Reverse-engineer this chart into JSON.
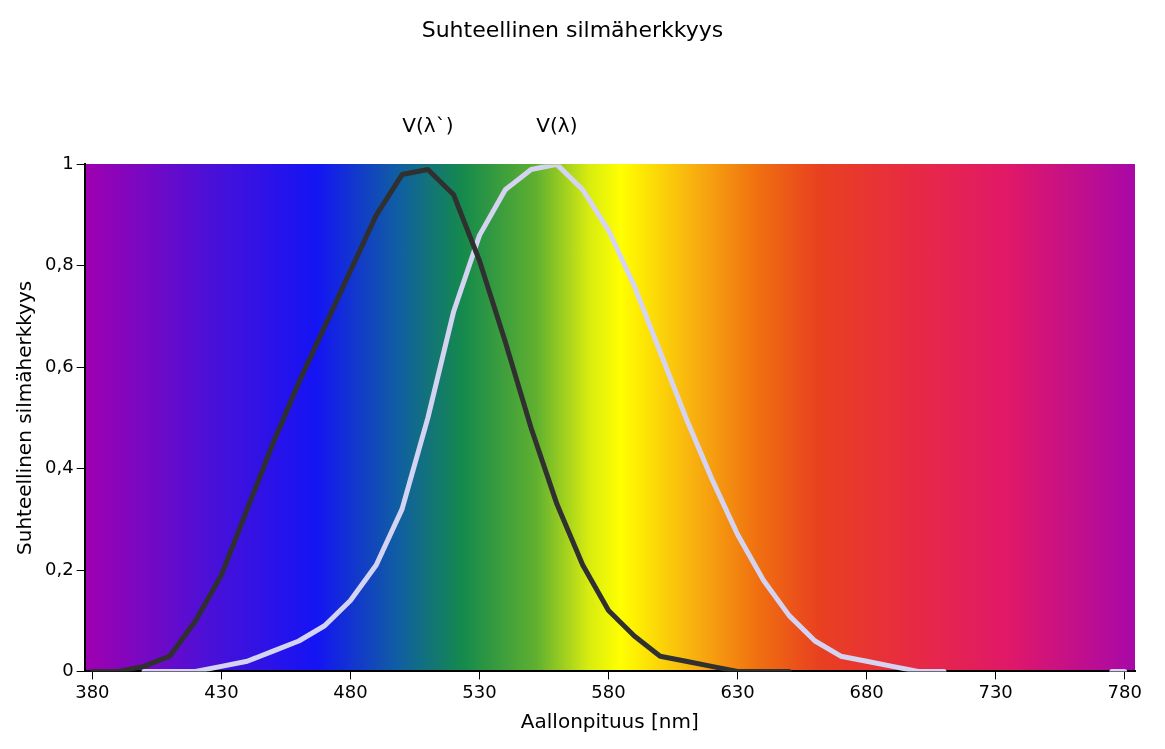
{
  "chart_data": {
    "type": "line",
    "title": "Suhteellinen silmäherkkyys",
    "xlabel": "Aallonpituus [nm]",
    "ylabel": "Suhteellinen silmäherkkyys",
    "xlim": [
      377,
      784
    ],
    "xticks": [
      380,
      430,
      480,
      530,
      580,
      630,
      680,
      730,
      780
    ],
    "ylim": [
      0,
      1
    ],
    "yticks": [
      0,
      {
        "value": 0.2,
        "label": "0,2"
      },
      {
        "value": 0.4,
        "label": "0,4"
      },
      {
        "value": 0.6,
        "label": "0,6"
      },
      {
        "value": 0.8,
        "label": "0,8"
      },
      1
    ],
    "grid": false,
    "legend": false,
    "marker": "none",
    "line_style": "solid",
    "series": [
      {
        "name": "V(λ`)",
        "color": "#303030",
        "x": [
          380,
          390,
          400,
          410,
          420,
          430,
          440,
          450,
          460,
          470,
          480,
          490,
          500,
          510,
          520,
          530,
          540,
          550,
          560,
          570,
          580,
          590,
          600,
          610,
          620,
          630,
          640,
          650
        ],
        "values": [
          0.0,
          0.0,
          0.01,
          0.03,
          0.1,
          0.19,
          0.32,
          0.45,
          0.57,
          0.68,
          0.79,
          0.9,
          0.98,
          0.99,
          0.94,
          0.81,
          0.65,
          0.48,
          0.33,
          0.21,
          0.12,
          0.07,
          0.03,
          0.02,
          0.01,
          0.0,
          0.0,
          0.0
        ]
      },
      {
        "name": "V(λ)",
        "color": "#d4d4f2",
        "x": [
          400,
          410,
          420,
          430,
          440,
          450,
          460,
          470,
          480,
          490,
          500,
          510,
          520,
          530,
          540,
          550,
          560,
          570,
          580,
          590,
          600,
          610,
          620,
          630,
          640,
          650,
          660,
          670,
          680,
          690,
          700,
          710,
          720,
          775,
          780
        ],
        "values": [
          0.0,
          0.0,
          0.0,
          0.01,
          0.02,
          0.04,
          0.06,
          0.09,
          0.14,
          0.21,
          0.32,
          0.5,
          0.71,
          0.86,
          0.95,
          0.99,
          1.0,
          0.95,
          0.87,
          0.76,
          0.63,
          0.5,
          0.38,
          0.27,
          0.18,
          0.11,
          0.06,
          0.03,
          0.02,
          0.01,
          0.0,
          0.0,
          null,
          0.0,
          0.0
        ]
      }
    ]
  }
}
